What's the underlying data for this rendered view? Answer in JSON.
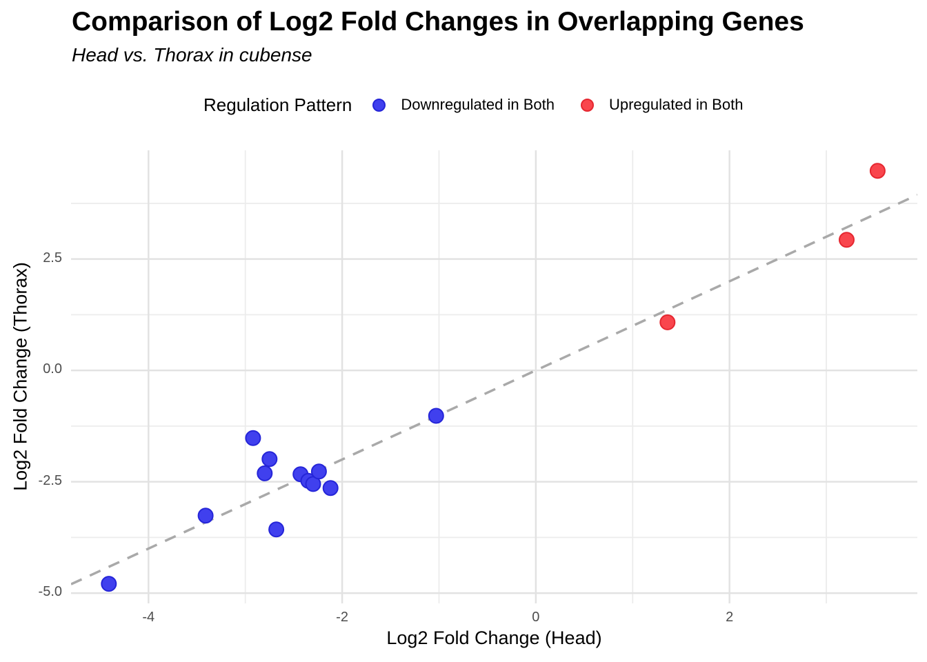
{
  "title": "Comparison of Log2 Fold Changes in Overlapping Genes",
  "subtitle": "Head vs. Thorax in cubense",
  "legend": {
    "title": "Regulation Pattern",
    "items": [
      {
        "label": "Downregulated in Both",
        "fill": "#4040EE",
        "stroke": "#2525D8"
      },
      {
        "label": "Upregulated in Both",
        "fill": "#F9464D",
        "stroke": "#E52730"
      }
    ]
  },
  "colors": {
    "background": "#FFFFFF",
    "grid_major": "#E2E2E2",
    "grid_minor": "#ECECEC",
    "reference_line": "#A9A9A9",
    "tick_text": "#4D4D4D",
    "blue_fill": "#4040EE",
    "blue_stroke": "#2525D8",
    "red_fill": "#F9464D",
    "red_stroke": "#E52730"
  },
  "chart_data": {
    "type": "scatter",
    "title": "Comparison of Log2 Fold Changes in Overlapping Genes",
    "subtitle": "Head vs. Thorax in cubense",
    "xlabel": "Log2 Fold Change (Head)",
    "ylabel": "Log2 Fold Change (Thorax)",
    "xlim": [
      -4.8,
      3.94
    ],
    "ylim": [
      -5.23,
      4.94
    ],
    "x_major_ticks": [
      -4,
      -2,
      0,
      2
    ],
    "x_tick_labels": [
      "-4",
      "-2",
      "0",
      "2"
    ],
    "x_minor_ticks": [
      -3,
      -1,
      1,
      3
    ],
    "y_major_ticks": [
      2.5,
      0.0,
      -2.5,
      -5.0
    ],
    "y_tick_labels": [
      "2.5",
      "0.0",
      "-2.5",
      "-5.0"
    ],
    "y_minor_ticks": [
      3.75,
      1.25,
      -1.25,
      -3.75
    ],
    "grid": true,
    "legend_position": "top",
    "point_radius": 10.5,
    "reference_line": {
      "kind": "abline",
      "slope": 1,
      "intercept": 0,
      "style": "dashed"
    },
    "series": [
      {
        "name": "Downregulated in Both",
        "fill": "#4040EE",
        "stroke": "#2525D8",
        "points": [
          [
            -4.41,
            -4.79
          ],
          [
            -3.41,
            -3.26
          ],
          [
            -2.92,
            -1.52
          ],
          [
            -2.8,
            -2.31
          ],
          [
            -2.75,
            -1.99
          ],
          [
            -2.68,
            -3.57
          ],
          [
            -2.43,
            -2.33
          ],
          [
            -2.35,
            -2.48
          ],
          [
            -2.3,
            -2.55
          ],
          [
            -2.24,
            -2.27
          ],
          [
            -2.12,
            -2.64
          ],
          [
            -1.03,
            -1.02
          ]
        ]
      },
      {
        "name": "Upregulated in Both",
        "fill": "#F9464D",
        "stroke": "#E52730",
        "points": [
          [
            1.36,
            1.08
          ],
          [
            3.21,
            2.93
          ],
          [
            3.53,
            4.48
          ]
        ]
      }
    ]
  }
}
